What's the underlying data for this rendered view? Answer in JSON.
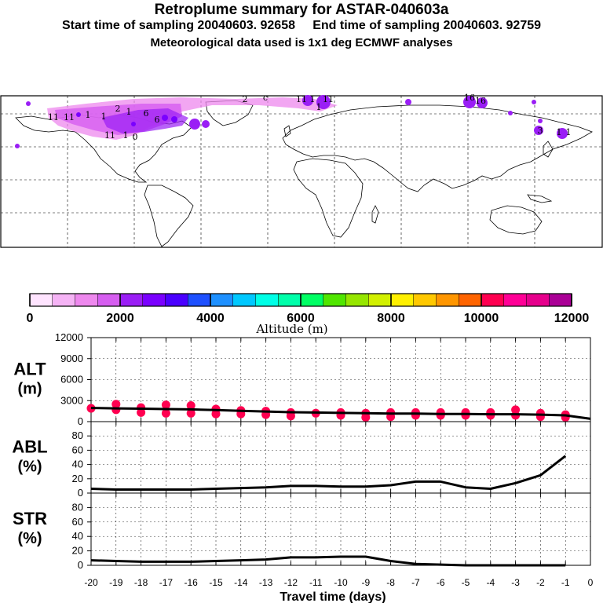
{
  "header": {
    "title": "Retroplume summary for ASTAR-040603a",
    "sampling": "Start time of sampling 20040603. 92658     End time of sampling 20040603. 92759",
    "met": "Meteorological data used is 1x1 deg ECMWF analyses"
  },
  "colorbar": {
    "label": "Altitude (m)",
    "ticks": [
      "0",
      "2000",
      "4000",
      "6000",
      "8000",
      "10000",
      "12000"
    ],
    "colors": [
      "#ffe4ff",
      "#f5b3f5",
      "#ee88ee",
      "#d65ef0",
      "#9a1ef5",
      "#7a00ff",
      "#4a00ff",
      "#1e50ff",
      "#1e90ff",
      "#00c8ff",
      "#00ffe6",
      "#00ffaa",
      "#00ff64",
      "#50e600",
      "#96e600",
      "#d2f000",
      "#fff000",
      "#ffc800",
      "#ff9600",
      "#ff6400",
      "#ff0050",
      "#ff0096",
      "#e6008c",
      "#aa0096"
    ]
  },
  "map": {
    "plume_labels": [
      "11",
      "11",
      "1",
      "1",
      "2",
      "1",
      "6",
      "11",
      "1",
      "0",
      "6",
      "2",
      "c",
      "11",
      "1",
      "1",
      "11",
      "16",
      "16",
      "3",
      "1",
      "1"
    ]
  },
  "chart_data": [
    {
      "type": "line",
      "name": "ALT",
      "ylabel_line1": "ALT",
      "ylabel_line2": "(m)",
      "ylim": [
        0,
        12000
      ],
      "yticks": [
        "12000",
        "9000",
        "6000",
        "3000",
        "0"
      ],
      "x": [
        -20,
        -19,
        -18,
        -17,
        -16,
        -15,
        -14,
        -13,
        -12,
        -11,
        -10,
        -9,
        -8,
        -7,
        -6,
        -5,
        -4,
        -3,
        -2,
        -1,
        0
      ],
      "y": [
        1950,
        1900,
        1850,
        1800,
        1750,
        1650,
        1550,
        1450,
        1350,
        1300,
        1250,
        1200,
        1150,
        1150,
        1100,
        1100,
        1050,
        1050,
        1000,
        900,
        400
      ],
      "scatter": [
        {
          "x": -20,
          "y": 1900
        },
        {
          "x": -19,
          "y": 2500
        },
        {
          "x": -19,
          "y": 1700
        },
        {
          "x": -18,
          "y": 2000
        },
        {
          "x": -18,
          "y": 1300
        },
        {
          "x": -17,
          "y": 2400
        },
        {
          "x": -17,
          "y": 1200
        },
        {
          "x": -16,
          "y": 2300
        },
        {
          "x": -16,
          "y": 1200
        },
        {
          "x": -15,
          "y": 1800
        },
        {
          "x": -15,
          "y": 1100
        },
        {
          "x": -14,
          "y": 1600
        },
        {
          "x": -14,
          "y": 1100
        },
        {
          "x": -13,
          "y": 1500
        },
        {
          "x": -13,
          "y": 1000
        },
        {
          "x": -12,
          "y": 1300
        },
        {
          "x": -12,
          "y": 800
        },
        {
          "x": -11,
          "y": 1200
        },
        {
          "x": -10,
          "y": 1300
        },
        {
          "x": -10,
          "y": 900
        },
        {
          "x": -9,
          "y": 1200
        },
        {
          "x": -9,
          "y": 600
        },
        {
          "x": -8,
          "y": 1300
        },
        {
          "x": -8,
          "y": 700
        },
        {
          "x": -7,
          "y": 1300
        },
        {
          "x": -7,
          "y": 900
        },
        {
          "x": -6,
          "y": 1300
        },
        {
          "x": -6,
          "y": 900
        },
        {
          "x": -5,
          "y": 1300
        },
        {
          "x": -5,
          "y": 900
        },
        {
          "x": -4,
          "y": 1300
        },
        {
          "x": -4,
          "y": 900
        },
        {
          "x": -3,
          "y": 1700
        },
        {
          "x": -3,
          "y": 900
        },
        {
          "x": -2,
          "y": 1200
        },
        {
          "x": -2,
          "y": 700
        },
        {
          "x": -1,
          "y": 1000
        },
        {
          "x": -1,
          "y": 600
        }
      ]
    },
    {
      "type": "line",
      "name": "ABL",
      "ylabel_line1": "ABL",
      "ylabel_line2": "(%)",
      "ylim": [
        0,
        100
      ],
      "yticks": [
        "80",
        "60",
        "40",
        "20",
        "0"
      ],
      "x": [
        -20,
        -19,
        -18,
        -17,
        -16,
        -15,
        -14,
        -13,
        -12,
        -11,
        -10,
        -9,
        -8,
        -7,
        -6,
        -5,
        -4,
        -3,
        -2,
        -1
      ],
      "y": [
        6,
        5,
        5,
        5,
        5,
        6,
        7,
        8,
        10,
        10,
        9,
        9,
        11,
        16,
        16,
        8,
        6,
        14,
        25,
        52
      ]
    },
    {
      "type": "line",
      "name": "STR",
      "ylabel_line1": "STR",
      "ylabel_line2": "(%)",
      "ylim": [
        0,
        100
      ],
      "yticks": [
        "80",
        "60",
        "40",
        "20",
        "0"
      ],
      "x": [
        -20,
        -19,
        -18,
        -17,
        -16,
        -15,
        -14,
        -13,
        -12,
        -11,
        -10,
        -9,
        -8,
        -7,
        -6,
        -5,
        -4,
        -3,
        -2,
        -1
      ],
      "y": [
        7,
        6,
        5,
        5,
        5,
        6,
        7,
        8,
        11,
        11,
        12,
        12,
        6,
        2,
        1,
        0,
        0,
        0,
        0,
        0
      ],
      "xlabel": "Travel time (days)",
      "xtick_labels": [
        "-20",
        "-19",
        "-18",
        "-17",
        "-16",
        "-15",
        "-14",
        "-13",
        "-12",
        "-11",
        "-10",
        "-9",
        "-8",
        "-7",
        "-6",
        "-5",
        "-4",
        "-3",
        "-2",
        "-1",
        "0"
      ]
    }
  ]
}
